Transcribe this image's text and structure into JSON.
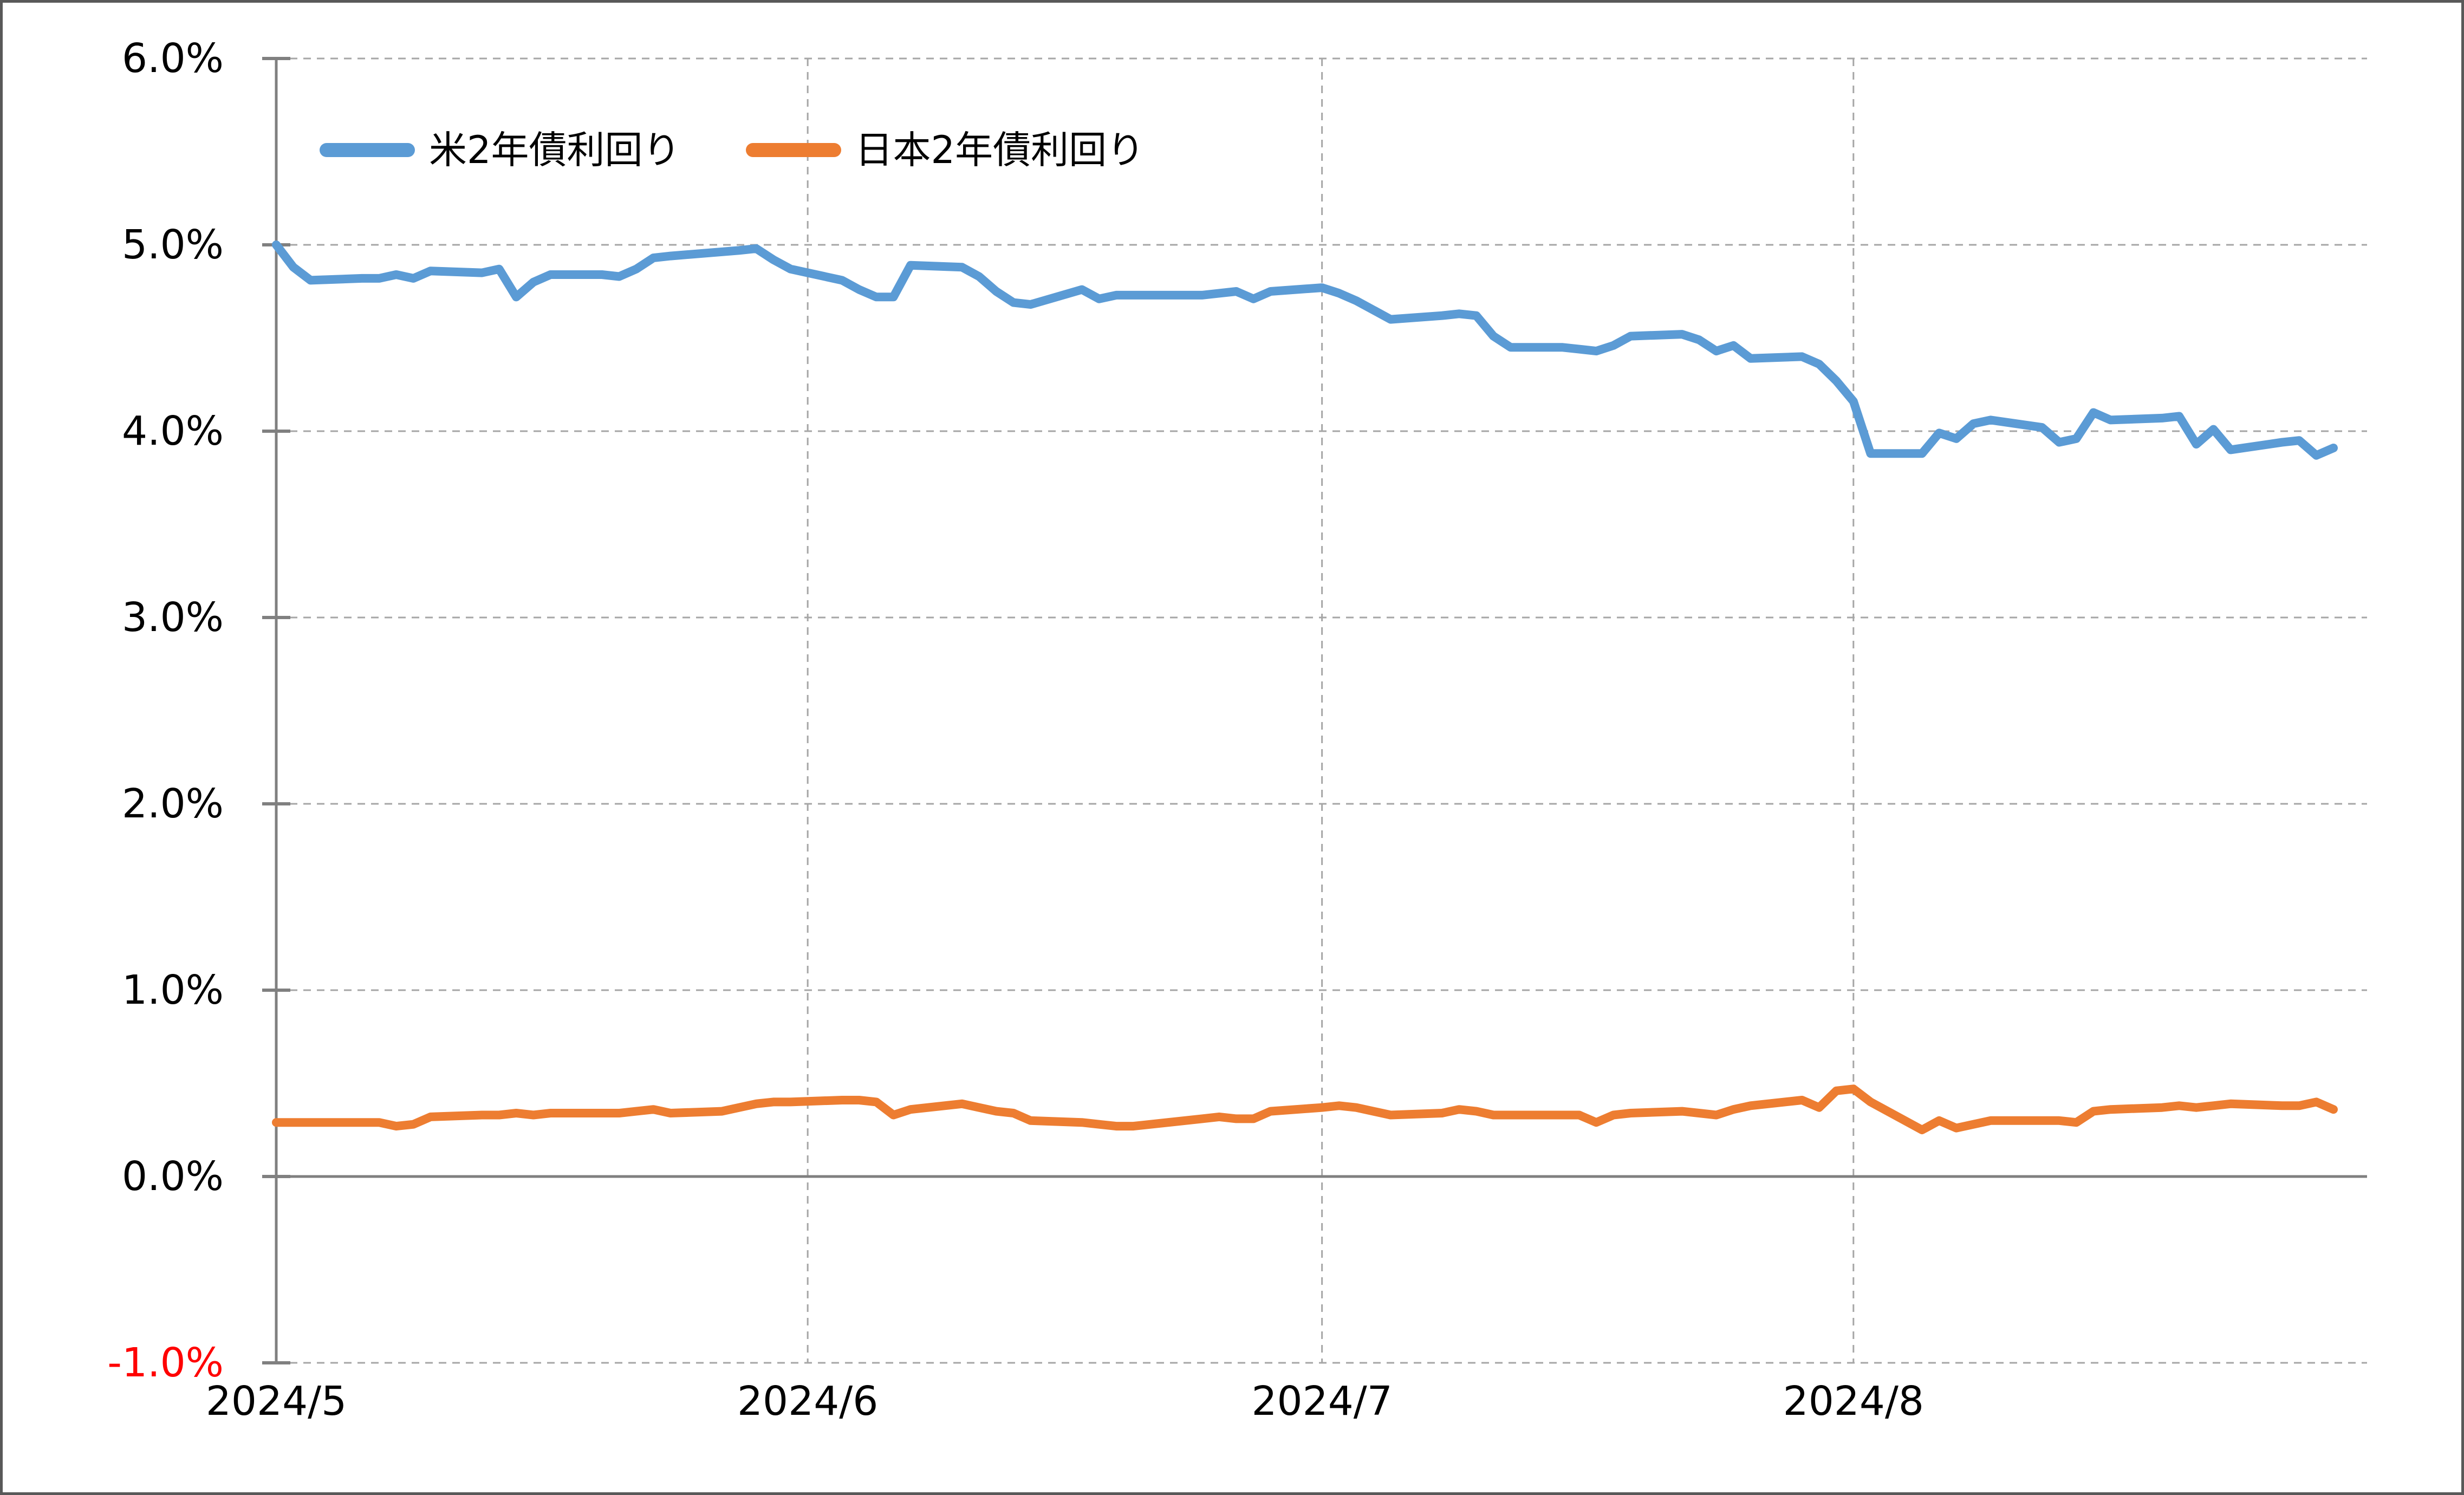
{
  "chart_data": {
    "type": "line",
    "title": "",
    "legend_position": "top-left",
    "grid": {
      "style": "dashed",
      "color": "#A6A6A6",
      "axis_color": "#808080"
    },
    "x_axis": {
      "ticks": [
        "2024/5",
        "2024/6",
        "2024/7",
        "2024/8"
      ],
      "tick_dates": [
        "5/1",
        "6/1",
        "7/1",
        "8/1"
      ],
      "month_day_offsets": {
        "5": 0,
        "6": 31,
        "7": 61,
        "8": 92
      },
      "range_days": 122
    },
    "y_axis": {
      "ticks": [
        "6.0%",
        "5.0%",
        "4.0%",
        "3.0%",
        "2.0%",
        "1.0%",
        "0.0%",
        "-1.0%"
      ],
      "values": [
        6,
        5,
        4,
        3,
        2,
        1,
        0,
        -1
      ],
      "tick_colors": [
        "#000000",
        "#000000",
        "#000000",
        "#000000",
        "#000000",
        "#000000",
        "#000000",
        "#FF0000"
      ],
      "min": -1.0,
      "max": 6.0
    },
    "series": [
      {
        "name": "米2年債利回り",
        "color": "#5B9BD5",
        "points": [
          [
            "5/1",
            5.0
          ],
          [
            "5/2",
            4.88
          ],
          [
            "5/3",
            4.81
          ],
          [
            "5/6",
            4.82
          ],
          [
            "5/7",
            4.82
          ],
          [
            "5/8",
            4.84
          ],
          [
            "5/9",
            4.82
          ],
          [
            "5/10",
            4.86
          ],
          [
            "5/13",
            4.85
          ],
          [
            "5/14",
            4.87
          ],
          [
            "5/15",
            4.72
          ],
          [
            "5/16",
            4.8
          ],
          [
            "5/17",
            4.84
          ],
          [
            "5/20",
            4.84
          ],
          [
            "5/21",
            4.83
          ],
          [
            "5/22",
            4.87
          ],
          [
            "5/23",
            4.93
          ],
          [
            "5/24",
            4.94
          ],
          [
            "5/28",
            4.97
          ],
          [
            "5/29",
            4.98
          ],
          [
            "5/30",
            4.92
          ],
          [
            "5/31",
            4.87
          ],
          [
            "6/3",
            4.81
          ],
          [
            "6/4",
            4.76
          ],
          [
            "6/5",
            4.72
          ],
          [
            "6/6",
            4.72
          ],
          [
            "6/7",
            4.89
          ],
          [
            "6/10",
            4.88
          ],
          [
            "6/11",
            4.83
          ],
          [
            "6/12",
            4.75
          ],
          [
            "6/13",
            4.69
          ],
          [
            "6/14",
            4.68
          ],
          [
            "6/17",
            4.76
          ],
          [
            "6/18",
            4.71
          ],
          [
            "6/19",
            4.73
          ],
          [
            "6/20",
            4.73
          ],
          [
            "6/21",
            4.73
          ],
          [
            "6/24",
            4.73
          ],
          [
            "6/25",
            4.74
          ],
          [
            "6/26",
            4.75
          ],
          [
            "6/27",
            4.71
          ],
          [
            "6/28",
            4.75
          ],
          [
            "7/1",
            4.77
          ],
          [
            "7/2",
            4.74
          ],
          [
            "7/3",
            4.7
          ],
          [
            "7/5",
            4.6
          ],
          [
            "7/8",
            4.62
          ],
          [
            "7/9",
            4.63
          ],
          [
            "7/10",
            4.62
          ],
          [
            "7/11",
            4.51
          ],
          [
            "7/12",
            4.45
          ],
          [
            "7/15",
            4.45
          ],
          [
            "7/16",
            4.44
          ],
          [
            "7/17",
            4.43
          ],
          [
            "7/18",
            4.46
          ],
          [
            "7/19",
            4.51
          ],
          [
            "7/22",
            4.52
          ],
          [
            "7/23",
            4.49
          ],
          [
            "7/24",
            4.43
          ],
          [
            "7/25",
            4.46
          ],
          [
            "7/26",
            4.39
          ],
          [
            "7/29",
            4.4
          ],
          [
            "7/30",
            4.36
          ],
          [
            "7/31",
            4.27
          ],
          [
            "8/1",
            4.16
          ],
          [
            "8/2",
            3.88
          ],
          [
            "8/5",
            3.88
          ],
          [
            "8/6",
            3.99
          ],
          [
            "8/7",
            3.96
          ],
          [
            "8/8",
            4.04
          ],
          [
            "8/9",
            4.06
          ],
          [
            "8/12",
            4.02
          ],
          [
            "8/13",
            3.94
          ],
          [
            "8/14",
            3.96
          ],
          [
            "8/15",
            4.1
          ],
          [
            "8/16",
            4.06
          ],
          [
            "8/19",
            4.07
          ],
          [
            "8/20",
            4.08
          ],
          [
            "8/21",
            3.93
          ],
          [
            "8/22",
            4.01
          ],
          [
            "8/23",
            3.9
          ],
          [
            "8/26",
            3.94
          ],
          [
            "8/27",
            3.95
          ],
          [
            "8/28",
            3.87
          ],
          [
            "8/29",
            3.91
          ]
        ]
      },
      {
        "name": "日本2年債利回り",
        "color": "#ED7D31",
        "points": [
          [
            "5/1",
            0.29
          ],
          [
            "5/2",
            0.29
          ],
          [
            "5/3",
            0.29
          ],
          [
            "5/6",
            0.29
          ],
          [
            "5/7",
            0.29
          ],
          [
            "5/8",
            0.27
          ],
          [
            "5/9",
            0.28
          ],
          [
            "5/10",
            0.32
          ],
          [
            "5/13",
            0.33
          ],
          [
            "5/14",
            0.33
          ],
          [
            "5/15",
            0.34
          ],
          [
            "5/16",
            0.33
          ],
          [
            "5/17",
            0.34
          ],
          [
            "5/20",
            0.34
          ],
          [
            "5/21",
            0.34
          ],
          [
            "5/22",
            0.35
          ],
          [
            "5/23",
            0.36
          ],
          [
            "5/24",
            0.34
          ],
          [
            "5/27",
            0.35
          ],
          [
            "5/28",
            0.37
          ],
          [
            "5/29",
            0.39
          ],
          [
            "5/30",
            0.4
          ],
          [
            "5/31",
            0.4
          ],
          [
            "6/3",
            0.41
          ],
          [
            "6/4",
            0.41
          ],
          [
            "6/5",
            0.4
          ],
          [
            "6/6",
            0.33
          ],
          [
            "6/7",
            0.36
          ],
          [
            "6/10",
            0.39
          ],
          [
            "6/11",
            0.37
          ],
          [
            "6/12",
            0.35
          ],
          [
            "6/13",
            0.34
          ],
          [
            "6/14",
            0.3
          ],
          [
            "6/17",
            0.29
          ],
          [
            "6/18",
            0.28
          ],
          [
            "6/19",
            0.27
          ],
          [
            "6/20",
            0.27
          ],
          [
            "6/21",
            0.28
          ],
          [
            "6/24",
            0.31
          ],
          [
            "6/25",
            0.32
          ],
          [
            "6/26",
            0.31
          ],
          [
            "6/27",
            0.31
          ],
          [
            "6/28",
            0.35
          ],
          [
            "7/1",
            0.37
          ],
          [
            "7/2",
            0.38
          ],
          [
            "7/3",
            0.37
          ],
          [
            "7/5",
            0.33
          ],
          [
            "7/8",
            0.34
          ],
          [
            "7/9",
            0.36
          ],
          [
            "7/10",
            0.35
          ],
          [
            "7/11",
            0.33
          ],
          [
            "7/12",
            0.33
          ],
          [
            "7/16",
            0.33
          ],
          [
            "7/17",
            0.29
          ],
          [
            "7/18",
            0.33
          ],
          [
            "7/19",
            0.34
          ],
          [
            "7/22",
            0.35
          ],
          [
            "7/23",
            0.34
          ],
          [
            "7/24",
            0.33
          ],
          [
            "7/25",
            0.36
          ],
          [
            "7/26",
            0.38
          ],
          [
            "7/29",
            0.41
          ],
          [
            "7/30",
            0.37
          ],
          [
            "7/31",
            0.46
          ],
          [
            "8/1",
            0.47
          ],
          [
            "8/2",
            0.4
          ],
          [
            "8/5",
            0.25
          ],
          [
            "8/6",
            0.3
          ],
          [
            "8/7",
            0.26
          ],
          [
            "8/8",
            0.28
          ],
          [
            "8/9",
            0.3
          ],
          [
            "8/13",
            0.3
          ],
          [
            "8/14",
            0.29
          ],
          [
            "8/15",
            0.35
          ],
          [
            "8/16",
            0.36
          ],
          [
            "8/19",
            0.37
          ],
          [
            "8/20",
            0.38
          ],
          [
            "8/21",
            0.37
          ],
          [
            "8/22",
            0.38
          ],
          [
            "8/23",
            0.39
          ],
          [
            "8/26",
            0.38
          ],
          [
            "8/27",
            0.38
          ],
          [
            "8/28",
            0.4
          ],
          [
            "8/29",
            0.36
          ]
        ]
      }
    ]
  }
}
